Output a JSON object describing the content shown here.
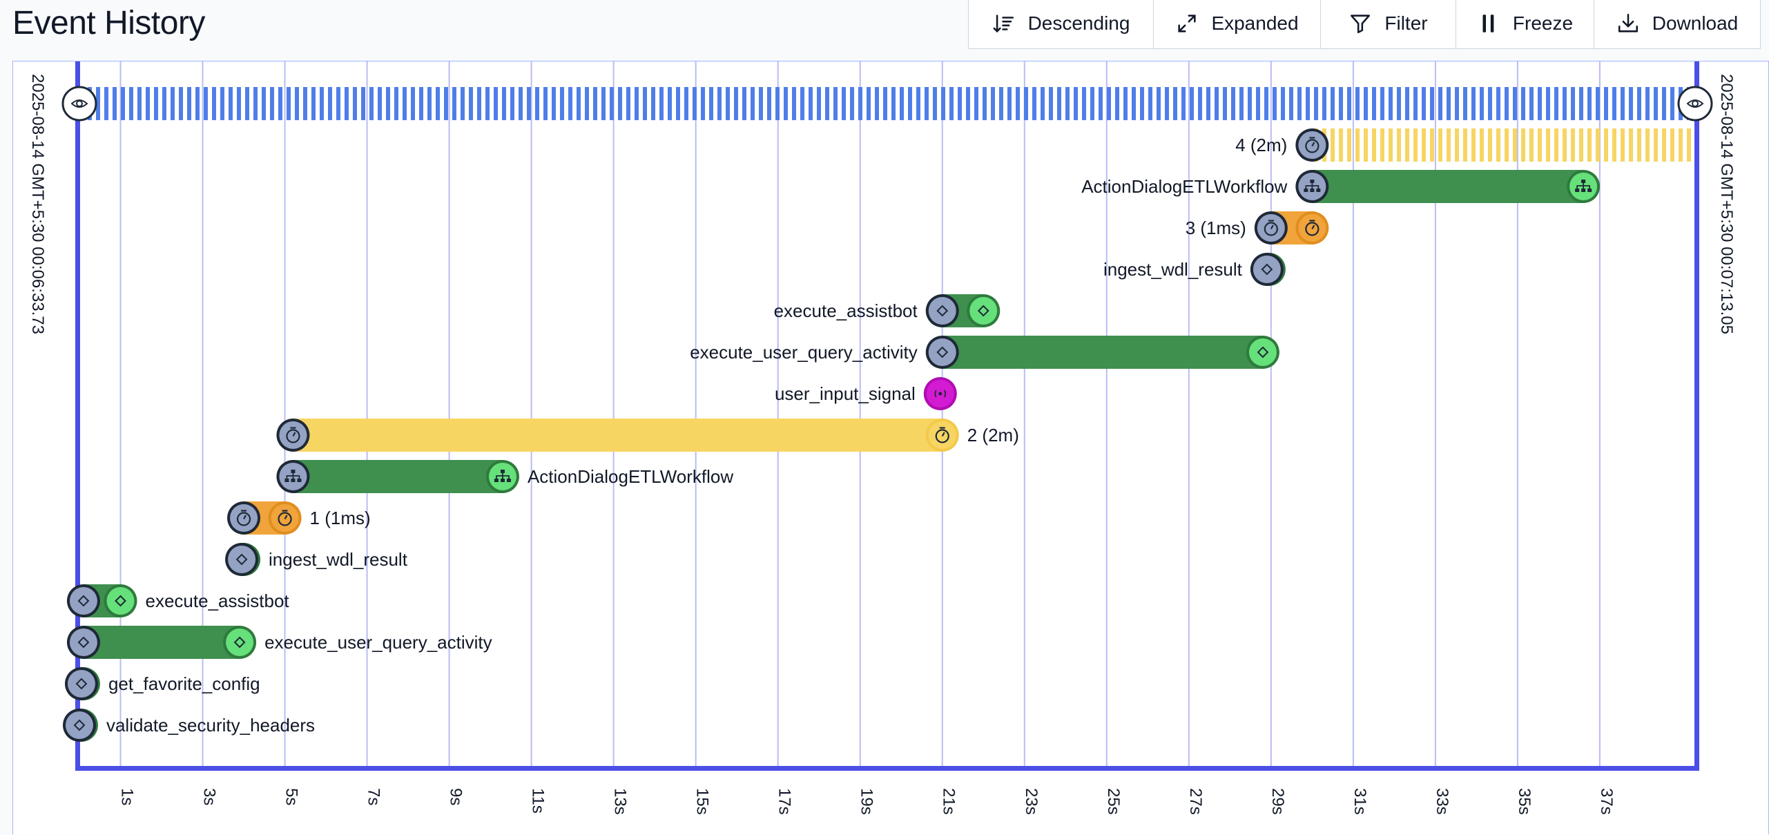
{
  "header": {
    "title": "Event History"
  },
  "toolbar": {
    "buttons": [
      {
        "key": "sort",
        "label": "Descending",
        "icon": "sort-descending-icon"
      },
      {
        "key": "view",
        "label": "Expanded",
        "icon": "expand-icon"
      },
      {
        "key": "filter",
        "label": "Filter",
        "icon": "filter-icon"
      },
      {
        "key": "freeze",
        "label": "Freeze",
        "icon": "pause-icon"
      },
      {
        "key": "download",
        "label": "Download",
        "icon": "download-icon"
      }
    ]
  },
  "timeline": {
    "start_label": "2025-08-14 GMT+5:30 00:06:33.73",
    "end_label": "2025-08-14 GMT+5:30 00:07:13.05",
    "duration_s": 39.32,
    "tick_labels": [
      "1s",
      "3s",
      "5s",
      "7s",
      "9s",
      "11s",
      "13s",
      "15s",
      "17s",
      "19s",
      "21s",
      "23s",
      "25s",
      "27s",
      "29s",
      "31s",
      "33s",
      "35s",
      "37s"
    ],
    "colors": {
      "workflow": "#4f7ee8",
      "activity": "#3f8f4e",
      "child_workflow": "#3f8f4e",
      "timer_long": "#f7d563",
      "timer_short": "#f0a43b",
      "signal": "#d31bd3",
      "frame": "#4b4fe6",
      "grid": "#b9bcf5",
      "start_node": "#94a3c4",
      "end_node": "#66e07a"
    },
    "rows": [
      {
        "name": "workflow",
        "type": "workflow",
        "start": 0,
        "end": 39.32,
        "label": "",
        "label_side": "none",
        "pending": true
      },
      {
        "name": "timer-4",
        "type": "timer",
        "start": 30.0,
        "end": 39.32,
        "label": "4 (2m)",
        "label_side": "left",
        "pending": true
      },
      {
        "name": "child-workflow-2",
        "type": "child",
        "start": 30.0,
        "end": 36.6,
        "label": "ActionDialogETLWorkflow",
        "label_side": "left"
      },
      {
        "name": "timer-3",
        "type": "timer_short",
        "start": 29.0,
        "end": 30.0,
        "label": "3 (1ms)",
        "label_side": "left"
      },
      {
        "name": "ingest-wdl-result-2",
        "type": "activity",
        "start": 28.9,
        "end": 28.95,
        "label": "ingest_wdl_result",
        "label_side": "left"
      },
      {
        "name": "execute-assistbot-2",
        "type": "activity",
        "start": 21.0,
        "end": 22.0,
        "label": "execute_assistbot",
        "label_side": "left"
      },
      {
        "name": "execute-user-query-activity-2",
        "type": "activity",
        "start": 21.0,
        "end": 28.8,
        "label": "execute_user_query_activity",
        "label_side": "left"
      },
      {
        "name": "user-input-signal",
        "type": "signal",
        "start": 20.95,
        "end": 20.95,
        "label": "user_input_signal",
        "label_side": "left"
      },
      {
        "name": "timer-2",
        "type": "timer",
        "start": 5.2,
        "end": 21.0,
        "label": "2 (2m)",
        "label_side": "right"
      },
      {
        "name": "child-workflow-1",
        "type": "child",
        "start": 5.2,
        "end": 10.3,
        "label": "ActionDialogETLWorkflow",
        "label_side": "right"
      },
      {
        "name": "timer-1",
        "type": "timer_short",
        "start": 4.0,
        "end": 5.0,
        "label": "1 (1ms)",
        "label_side": "right"
      },
      {
        "name": "ingest-wdl-result-1",
        "type": "activity",
        "start": 3.95,
        "end": 4.0,
        "label": "ingest_wdl_result",
        "label_side": "right"
      },
      {
        "name": "execute-assistbot-1",
        "type": "activity",
        "start": 0.1,
        "end": 1.0,
        "label": "execute_assistbot",
        "label_side": "right"
      },
      {
        "name": "execute-user-query-activity-1",
        "type": "activity",
        "start": 0.1,
        "end": 3.9,
        "label": "execute_user_query_activity",
        "label_side": "right"
      },
      {
        "name": "get-favorite-config",
        "type": "activity",
        "start": 0.05,
        "end": 0.1,
        "label": "get_favorite_config",
        "label_side": "right"
      },
      {
        "name": "validate-security-headers",
        "type": "activity",
        "start": 0.0,
        "end": 0.05,
        "label": "validate_security_headers",
        "label_side": "right"
      }
    ]
  }
}
